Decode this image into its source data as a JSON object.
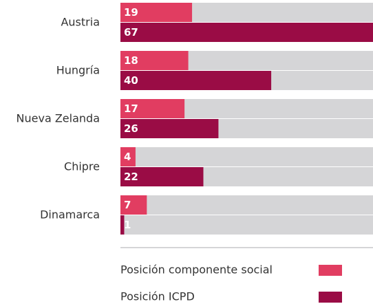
{
  "chart_data": {
    "type": "bar",
    "orientation": "horizontal",
    "categories": [
      "Austria",
      "Hungría",
      "Nueva Zelanda",
      "Chipre",
      "Dinamarca"
    ],
    "series": [
      {
        "name": "Posición componente social",
        "color": "#e13d61",
        "values": [
          19,
          18,
          17,
          4,
          7
        ]
      },
      {
        "name": "Posición ICPD",
        "color": "#9a0c45",
        "values": [
          67,
          40,
          26,
          22,
          1
        ]
      }
    ],
    "xlim": [
      0,
      67
    ],
    "track_color": "#d5d5d7"
  }
}
